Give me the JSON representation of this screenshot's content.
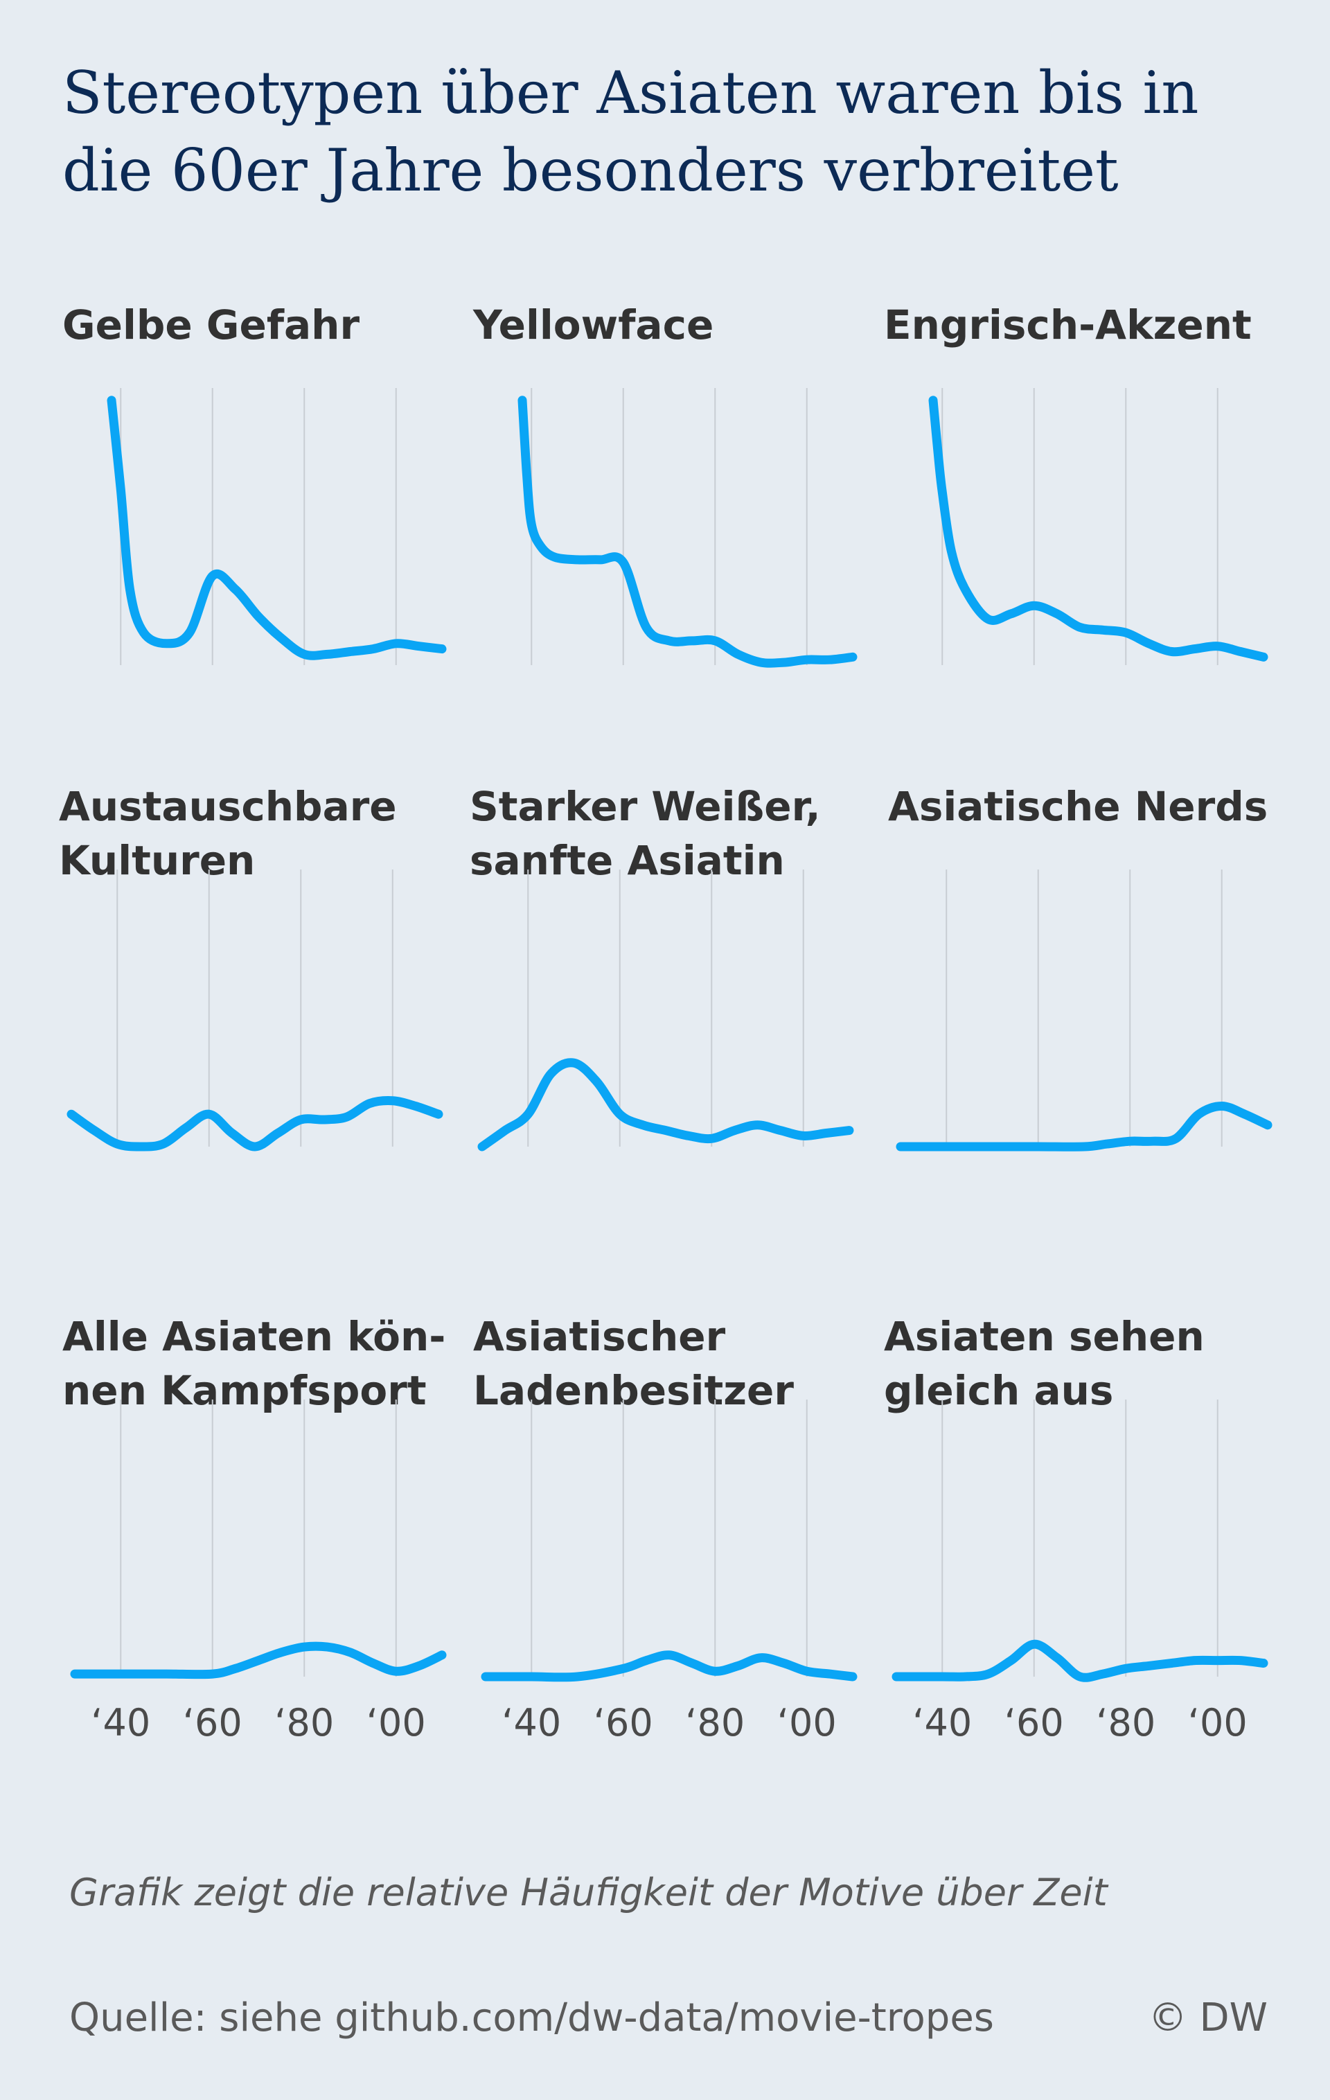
{
  "title": "Stereotypen über Asiaten waren bis in die 60er Jahre besonders verbreitet",
  "note": "Grafik zeigt die relative Häufigkeit der Motive über Zeit",
  "source": "Quelle: siehe github.com/dw-data/movie-tropes",
  "credit": "© DW",
  "colors": {
    "line": "#0aa5f5",
    "title": "#0c2a55",
    "background": "#e6ecf2"
  },
  "chart_data": {
    "type": "line",
    "layout": "small-multiples 3x3",
    "x_ticks": [
      1940,
      1960,
      1980,
      2000
    ],
    "x_tick_labels": [
      "‘40",
      "‘60",
      "‘80",
      "‘00"
    ],
    "xlim": [
      1930,
      2010
    ],
    "ylim": [
      0,
      100
    ],
    "y_axis_shown": false,
    "grid": "vertical",
    "panels": [
      {
        "title": "Gelbe Gefahr",
        "x": [
          1938,
          1940,
          1942,
          1945,
          1950,
          1955,
          1960,
          1965,
          1970,
          1975,
          1980,
          1985,
          1990,
          1995,
          2000,
          2005,
          2010
        ],
        "values": [
          98,
          65,
          28,
          12,
          8,
          12,
          33,
          28,
          18,
          10,
          4,
          4,
          5,
          6,
          8,
          7,
          6
        ]
      },
      {
        "title": "Yellowface",
        "x": [
          1938,
          1939,
          1940,
          1942,
          1945,
          1950,
          1955,
          1960,
          1965,
          1970,
          1975,
          1980,
          1985,
          1990,
          1995,
          2000,
          2005,
          2010
        ],
        "values": [
          98,
          70,
          52,
          44,
          40,
          39,
          39,
          38,
          14,
          9,
          9,
          9,
          4,
          1,
          1,
          2,
          2,
          3
        ]
      },
      {
        "title": "Engrisch-Akzent",
        "x": [
          1938,
          1939,
          1940,
          1942,
          1945,
          1950,
          1955,
          1960,
          1965,
          1970,
          1975,
          1980,
          1985,
          1990,
          1995,
          2000,
          2005,
          2010
        ],
        "values": [
          98,
          80,
          64,
          42,
          28,
          17,
          19,
          22,
          19,
          14,
          13,
          12,
          8,
          5,
          6,
          7,
          5,
          3
        ]
      },
      {
        "title": "Austauschbare\nKulturen",
        "x": [
          1930,
          1935,
          1940,
          1945,
          1950,
          1955,
          1960,
          1965,
          1970,
          1975,
          1980,
          1985,
          1990,
          1995,
          2000,
          2005,
          2010
        ],
        "values": [
          12,
          6,
          1,
          0,
          1,
          7,
          12,
          5,
          0,
          5,
          10,
          10,
          11,
          16,
          17,
          15,
          12
        ]
      },
      {
        "title": "Starker Weißer,\nsanfte Asiatin",
        "x": [
          1930,
          1935,
          1940,
          1945,
          1950,
          1955,
          1960,
          1965,
          1970,
          1975,
          1980,
          1985,
          1990,
          1995,
          2000,
          2005,
          2010
        ],
        "values": [
          0,
          6,
          12,
          27,
          31,
          24,
          12,
          8,
          6,
          4,
          3,
          6,
          8,
          6,
          4,
          5,
          6
        ]
      },
      {
        "title": "Asiatische Nerds",
        "x": [
          1930,
          1940,
          1950,
          1960,
          1970,
          1975,
          1980,
          1985,
          1990,
          1995,
          2000,
          2005,
          2010
        ],
        "values": [
          0,
          0,
          0,
          0,
          0,
          1,
          2,
          2,
          3,
          12,
          15,
          12,
          8
        ]
      },
      {
        "title": "Alle Asiaten kön-\nnen Kampfsport",
        "x": [
          1930,
          1940,
          1950,
          1960,
          1965,
          1970,
          1975,
          1980,
          1985,
          1990,
          1995,
          2000,
          2005,
          2010
        ],
        "values": [
          1,
          1,
          1,
          1,
          3,
          6,
          9,
          11,
          11,
          9,
          5,
          2,
          4,
          8
        ]
      },
      {
        "title": "Asiatischer\nLadenbesitzer",
        "x": [
          1930,
          1940,
          1950,
          1960,
          1965,
          1970,
          1975,
          1980,
          1985,
          1990,
          1995,
          2000,
          2005,
          2010
        ],
        "values": [
          0,
          0,
          0,
          3,
          6,
          8,
          5,
          2,
          4,
          7,
          5,
          2,
          1,
          0
        ]
      },
      {
        "title": "Asiaten sehen\ngleich aus",
        "x": [
          1930,
          1940,
          1945,
          1950,
          1955,
          1960,
          1965,
          1970,
          1975,
          1980,
          1985,
          1990,
          1995,
          2000,
          2005,
          2010
        ],
        "values": [
          0,
          0,
          0,
          1,
          6,
          12,
          7,
          0,
          1,
          3,
          4,
          5,
          6,
          6,
          6,
          5
        ]
      }
    ]
  }
}
